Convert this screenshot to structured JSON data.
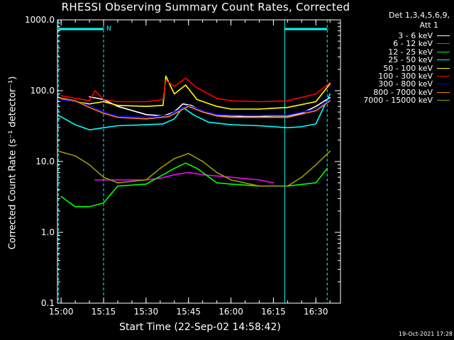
{
  "chart_data": {
    "type": "line",
    "title": "RHESSI Observing Summary Count Rates, Corrected",
    "xlabel": "Start Time (22-Sep-02 14:58:42)",
    "ylabel": "Corrected Count Rate (s⁻¹ detector⁻¹)",
    "y_scale": "log",
    "ylim": [
      0.1,
      1000
    ],
    "xlim": [
      "14:58:42",
      "16:38:42"
    ],
    "y_ticks": [
      "0.1",
      "1.0",
      "10.0",
      "100.0",
      "1000.0"
    ],
    "x_ticks": [
      "15:00",
      "15:15",
      "15:30",
      "15:45",
      "16:00",
      "16:15",
      "16:30"
    ],
    "detector_info": [
      "Det 1,3,4,5,6,9,",
      "Att 1"
    ],
    "footer": "19-Oct-2021 17:28",
    "night_flag_label": "N",
    "night_intervals": [
      [
        "14:59",
        "15:15"
      ],
      [
        "16:19",
        "16:34"
      ]
    ],
    "saa_boundaries": [
      "14:59",
      "15:15",
      "16:19",
      "16:34"
    ],
    "series": [
      {
        "name": "3 - 6 keV",
        "color": "#ffffff",
        "times": [
          "15:10",
          "15:15",
          "15:20",
          "15:30",
          "15:36",
          "15:40",
          "15:43",
          "15:46",
          "15:50",
          "15:55",
          "16:00",
          "16:05",
          "16:10",
          "16:15",
          "16:20",
          "16:25",
          "16:30",
          "16:35"
        ],
        "values": [
          82,
          75,
          60,
          46,
          44,
          50,
          65,
          62,
          50,
          45,
          44,
          43,
          43,
          44,
          44,
          48,
          60,
          80
        ]
      },
      {
        "name": "6 - 12 keV",
        "color": "#ff00ff",
        "times": [
          "15:12",
          "15:20",
          "15:30",
          "15:35",
          "15:40",
          "15:45",
          "15:50",
          "16:00",
          "16:10",
          "16:15"
        ],
        "values": [
          5.5,
          5.5,
          5.5,
          5.8,
          6.5,
          7.0,
          6.5,
          6.0,
          5.5,
          5.0
        ]
      },
      {
        "name": "12 - 25 keV",
        "color": "#00ff00",
        "times": [
          "15:00",
          "15:05",
          "15:10",
          "15:15",
          "15:20",
          "15:30",
          "15:36",
          "15:40",
          "15:44",
          "15:48",
          "15:55",
          "16:00",
          "16:10",
          "16:20",
          "16:30",
          "16:34"
        ],
        "values": [
          3.2,
          2.3,
          2.3,
          2.6,
          4.5,
          4.8,
          6.5,
          8.0,
          9.5,
          8.0,
          5.0,
          4.8,
          4.5,
          4.5,
          5.0,
          8.0
        ]
      },
      {
        "name": "25 - 50 keV",
        "color": "#00ffff",
        "times": [
          "14:59",
          "15:05",
          "15:10",
          "15:15",
          "15:20",
          "15:30",
          "15:36",
          "15:40",
          "15:43",
          "15:47",
          "15:52",
          "16:00",
          "16:10",
          "16:20",
          "16:25",
          "16:30",
          "16:35"
        ],
        "values": [
          45,
          33,
          28,
          30,
          32,
          33,
          34,
          40,
          58,
          45,
          36,
          33,
          32,
          30,
          31,
          34,
          90
        ]
      },
      {
        "name": "50 - 100 keV",
        "color": "#ffff00",
        "times": [
          "15:00",
          "15:10",
          "15:15",
          "15:20",
          "15:30",
          "15:36",
          "15:37",
          "15:40",
          "15:44",
          "15:48",
          "15:55",
          "16:00",
          "16:10",
          "16:20",
          "16:30",
          "16:35"
        ],
        "values": [
          75,
          65,
          70,
          62,
          60,
          62,
          160,
          90,
          120,
          75,
          60,
          55,
          55,
          58,
          70,
          125
        ]
      },
      {
        "name": "100 - 300 keV",
        "color": "#ff0000",
        "times": [
          "15:00",
          "15:10",
          "15:12",
          "15:15",
          "15:20",
          "15:30",
          "15:36",
          "15:37",
          "15:40",
          "15:44",
          "15:48",
          "15:55",
          "16:00",
          "16:10",
          "16:20",
          "16:30",
          "16:35"
        ],
        "values": [
          85,
          72,
          100,
          75,
          70,
          70,
          75,
          140,
          115,
          150,
          110,
          78,
          72,
          70,
          72,
          90,
          130
        ]
      },
      {
        "name": "300 - 800 keV",
        "color": "#0000ff",
        "times": [
          "14:59",
          "15:05",
          "15:10",
          "15:15",
          "15:20",
          "15:30",
          "15:38",
          "15:42",
          "15:45",
          "15:50",
          "15:55",
          "16:00",
          "16:10",
          "16:20",
          "16:30",
          "16:35"
        ],
        "values": [
          75,
          70,
          62,
          50,
          44,
          42,
          45,
          55,
          62,
          52,
          46,
          45,
          45,
          45,
          55,
          75
        ]
      },
      {
        "name": "800 - 7000 keV",
        "color": "#ff8000",
        "times": [
          "14:59",
          "15:05",
          "15:10",
          "15:15",
          "15:20",
          "15:30",
          "15:38",
          "15:42",
          "15:45",
          "15:50",
          "15:55",
          "16:00",
          "16:10",
          "16:20",
          "16:30",
          "16:35"
        ],
        "values": [
          80,
          72,
          58,
          48,
          42,
          40,
          43,
          52,
          60,
          50,
          44,
          42,
          42,
          42,
          52,
          72
        ]
      },
      {
        "name": "7000 - 15000 keV",
        "color": "#999900",
        "times": [
          "14:59",
          "15:05",
          "15:10",
          "15:15",
          "15:20",
          "15:30",
          "15:35",
          "15:40",
          "15:45",
          "15:50",
          "15:55",
          "16:00",
          "16:10",
          "16:20",
          "16:25",
          "16:30",
          "16:35"
        ],
        "values": [
          14,
          12,
          9,
          6,
          5,
          5.5,
          8,
          11,
          13,
          10,
          7,
          5.5,
          4.5,
          4.5,
          6,
          9,
          14
        ]
      }
    ]
  }
}
